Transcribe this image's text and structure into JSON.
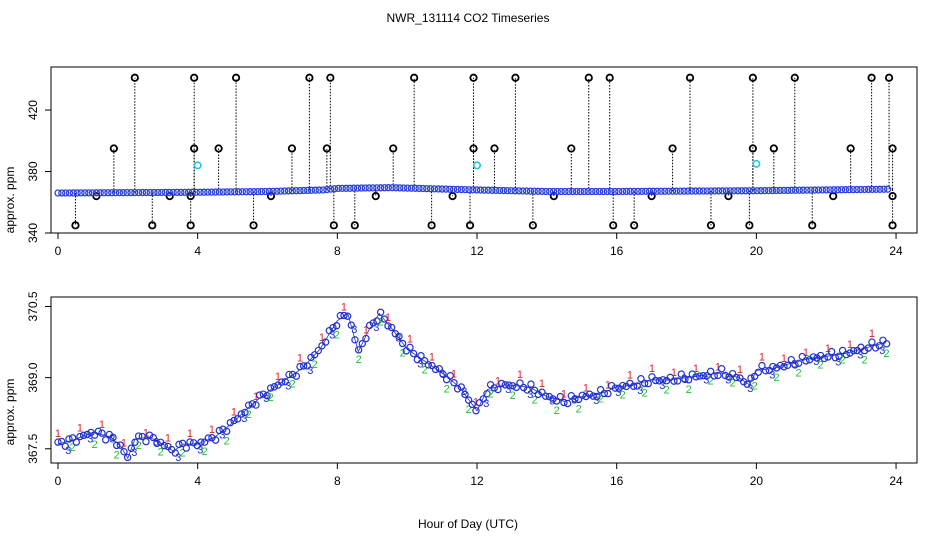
{
  "chart_data": {
    "title": "NWR_131114  CO2 Timeseries",
    "xlabel": "Hour of Day (UTC)",
    "panels": [
      {
        "name": "top",
        "type": "scatter",
        "ylabel": "approx. ppm",
        "xlim": [
          -0.2,
          24.6
        ],
        "ylim": [
          340,
          448
        ],
        "xticks": [
          "0",
          "4",
          "8",
          "12",
          "16",
          "20",
          "24"
        ],
        "yticks": [
          "340",
          "380",
          "420"
        ],
        "baseline": [
          [
            0,
            366
          ],
          [
            4,
            366.5
          ],
          [
            6,
            367
          ],
          [
            7.6,
            368
          ],
          [
            8,
            369
          ],
          [
            9.5,
            369.5
          ],
          [
            12,
            368
          ],
          [
            14,
            367
          ],
          [
            16,
            367
          ],
          [
            20,
            367.5
          ],
          [
            23.8,
            368.5
          ]
        ],
        "spikes": [
          [
            0.5,
            345
          ],
          [
            1.1,
            364
          ],
          [
            1.6,
            395
          ],
          [
            2.2,
            441
          ],
          [
            2.7,
            345
          ],
          [
            3.2,
            364
          ],
          [
            3.8,
            345
          ],
          [
            3.9,
            395
          ],
          [
            3.9,
            441
          ],
          [
            3.8,
            364
          ],
          [
            4.6,
            395
          ],
          [
            5.1,
            441
          ],
          [
            5.6,
            345
          ],
          [
            6.1,
            364
          ],
          [
            6.7,
            395
          ],
          [
            7.2,
            441
          ],
          [
            7.7,
            395
          ],
          [
            7.8,
            441
          ],
          [
            7.9,
            345
          ],
          [
            8.5,
            345
          ],
          [
            9.1,
            364
          ],
          [
            9.6,
            395
          ],
          [
            10.2,
            441
          ],
          [
            10.7,
            345
          ],
          [
            11.3,
            364
          ],
          [
            11.8,
            345
          ],
          [
            11.9,
            395
          ],
          [
            11.9,
            441
          ],
          [
            12.5,
            395
          ],
          [
            13.1,
            441
          ],
          [
            13.6,
            345
          ],
          [
            14.2,
            364
          ],
          [
            14.7,
            395
          ],
          [
            15.2,
            441
          ],
          [
            15.8,
            441
          ],
          [
            15.9,
            345
          ],
          [
            16.5,
            345
          ],
          [
            17.0,
            364
          ],
          [
            17.6,
            395
          ],
          [
            18.1,
            441
          ],
          [
            18.7,
            345
          ],
          [
            19.2,
            364
          ],
          [
            19.8,
            345
          ],
          [
            19.9,
            395
          ],
          [
            19.9,
            441
          ],
          [
            20.5,
            395
          ],
          [
            21.1,
            441
          ],
          [
            21.6,
            345
          ],
          [
            22.2,
            364
          ],
          [
            22.7,
            395
          ],
          [
            23.3,
            441
          ],
          [
            23.8,
            441
          ],
          [
            23.9,
            395
          ],
          [
            23.9,
            345
          ],
          [
            23.9,
            364
          ]
        ],
        "cyan_points": [
          [
            4.0,
            384
          ],
          [
            12.0,
            384
          ],
          [
            20.0,
            385
          ]
        ]
      },
      {
        "name": "bottom",
        "type": "scatter",
        "ylabel": "approx. ppm",
        "xlim": [
          -0.2,
          24.6
        ],
        "ylim": [
          367.2,
          370.7
        ],
        "xticks": [
          "0",
          "4",
          "8",
          "12",
          "16",
          "20",
          "24"
        ],
        "yticks": [
          "367.5",
          "369.0",
          "370.5"
        ],
        "series": [
          {
            "name": "1",
            "color": "#e0202a"
          },
          {
            "name": "2",
            "color": "#20c030"
          },
          {
            "name": "3",
            "color": "#2030d0"
          }
        ],
        "curve": [
          [
            0,
            367.6
          ],
          [
            0.5,
            367.7
          ],
          [
            1.0,
            367.85
          ],
          [
            1.5,
            367.75
          ],
          [
            1.8,
            367.55
          ],
          [
            2.0,
            367.3
          ],
          [
            2.2,
            367.7
          ],
          [
            2.6,
            367.75
          ],
          [
            3.0,
            367.6
          ],
          [
            3.3,
            367.45
          ],
          [
            3.6,
            367.6
          ],
          [
            4.0,
            367.6
          ],
          [
            4.5,
            367.75
          ],
          [
            5.0,
            368.05
          ],
          [
            5.5,
            368.4
          ],
          [
            6.0,
            368.7
          ],
          [
            6.5,
            368.95
          ],
          [
            7.0,
            369.2
          ],
          [
            7.5,
            369.6
          ],
          [
            8.0,
            370.2
          ],
          [
            8.3,
            370.35
          ],
          [
            8.6,
            369.55
          ],
          [
            8.9,
            370.0
          ],
          [
            9.2,
            370.35
          ],
          [
            9.6,
            370.0
          ],
          [
            10.0,
            369.6
          ],
          [
            10.5,
            369.35
          ],
          [
            11.0,
            369.1
          ],
          [
            11.5,
            368.8
          ],
          [
            12.0,
            368.3
          ],
          [
            12.3,
            368.75
          ],
          [
            12.8,
            368.85
          ],
          [
            13.5,
            368.8
          ],
          [
            14.0,
            368.6
          ],
          [
            14.5,
            368.5
          ],
          [
            15.0,
            368.6
          ],
          [
            15.5,
            368.65
          ],
          [
            16.0,
            368.8
          ],
          [
            16.5,
            368.85
          ],
          [
            17.0,
            368.95
          ],
          [
            17.5,
            368.95
          ],
          [
            18.0,
            369.0
          ],
          [
            18.5,
            369.05
          ],
          [
            19.0,
            369.1
          ],
          [
            19.5,
            369.0
          ],
          [
            19.8,
            368.85
          ],
          [
            20.0,
            369.15
          ],
          [
            20.5,
            369.2
          ],
          [
            21.0,
            369.3
          ],
          [
            21.5,
            369.4
          ],
          [
            22.0,
            369.45
          ],
          [
            22.5,
            369.5
          ],
          [
            23.0,
            369.6
          ],
          [
            23.5,
            369.7
          ],
          [
            23.8,
            369.75
          ]
        ]
      }
    ]
  }
}
